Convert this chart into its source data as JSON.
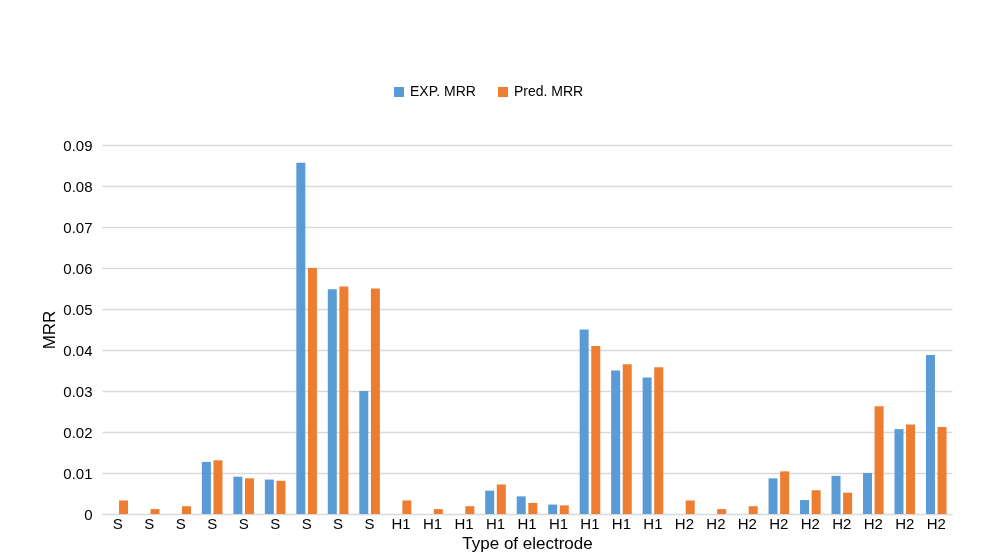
{
  "chart_data": {
    "type": "bar",
    "xlabel": "Type of electrode",
    "ylabel": "MRR",
    "categories": [
      "S",
      "S",
      "S",
      "S",
      "S",
      "S",
      "S",
      "S",
      "S",
      "H1",
      "H1",
      "H1",
      "H1",
      "H1",
      "H1",
      "H1",
      "H1",
      "H1",
      "H2",
      "H2",
      "H2",
      "H2",
      "H2",
      "H2",
      "H2",
      "H2",
      "H2"
    ],
    "series": [
      {
        "name": "EXP. MRR",
        "color": "#5b9bd5",
        "values": [
          null,
          null,
          null,
          0.0127,
          0.0091,
          0.0084,
          0.0857,
          0.0548,
          0.03,
          null,
          null,
          null,
          0.0057,
          0.0043,
          0.0023,
          0.045,
          0.035,
          0.0333,
          null,
          null,
          null,
          0.0087,
          0.0034,
          0.0093,
          0.01,
          0.0207,
          0.0388
        ]
      },
      {
        "name": "Pred. MRR",
        "color": "#ed7d31",
        "values": [
          0.0033,
          0.0012,
          0.0019,
          0.0131,
          0.0087,
          0.0081,
          0.06,
          0.0555,
          0.055,
          0.0033,
          0.0012,
          0.0019,
          0.0072,
          0.0027,
          0.0021,
          0.041,
          0.0365,
          0.0358,
          0.0033,
          0.0012,
          0.0019,
          0.0104,
          0.0058,
          0.0052,
          0.0263,
          0.0218,
          0.0212
        ]
      }
    ],
    "ylim": [
      0,
      0.09
    ],
    "yticks": [
      0,
      0.01,
      0.02,
      0.03,
      0.04,
      0.05,
      0.06,
      0.07,
      0.08,
      0.09
    ],
    "grid": "y",
    "legend": "top"
  }
}
